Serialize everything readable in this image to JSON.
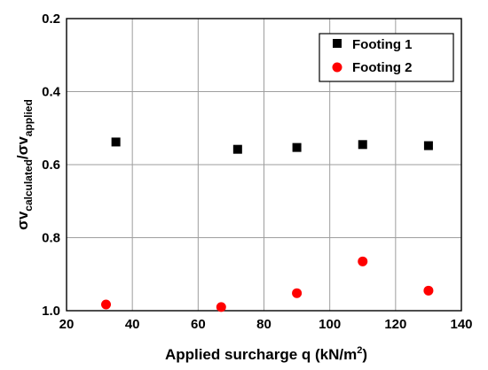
{
  "chart_data": {
    "type": "scatter",
    "title": "",
    "xlabel": "Applied surcharge q (kN/m²)",
    "ylabel": "σvcalculated/σvapplied",
    "ylabel_parts": {
      "sym1": "σv",
      "sub1": "calculated",
      "slash": "/",
      "sym2": "σv",
      "sub2": "applied"
    },
    "xlabel_parts": {
      "main": "Applied surcharge q (kN/m",
      "sup": "2",
      "end": ")"
    },
    "xlim": [
      20,
      140
    ],
    "ylim": [
      0.2,
      1.0
    ],
    "y_inverted": true,
    "x_ticks": [
      "20",
      "40",
      "60",
      "80",
      "100",
      "120",
      "140"
    ],
    "y_ticks": [
      "0.2",
      "0.4",
      "0.6",
      "0.8",
      "1.0"
    ],
    "grid": true,
    "legend_position": "top-right",
    "series": [
      {
        "name": "Footing 1",
        "marker": "square",
        "color": "#000000",
        "points": [
          [
            35,
            0.538
          ],
          [
            72,
            0.558
          ],
          [
            90,
            0.553
          ],
          [
            110,
            0.545
          ],
          [
            130,
            0.548
          ]
        ]
      },
      {
        "name": "Footing 2",
        "marker": "circle",
        "color": "#ff0000",
        "points": [
          [
            32,
            0.983
          ],
          [
            67,
            0.99
          ],
          [
            90,
            0.952
          ],
          [
            110,
            0.865
          ],
          [
            130,
            0.945
          ]
        ]
      }
    ]
  }
}
